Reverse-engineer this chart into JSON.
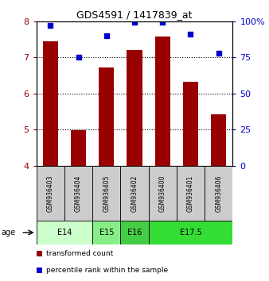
{
  "title": "GDS4591 / 1417839_at",
  "samples": [
    "GSM936403",
    "GSM936404",
    "GSM936405",
    "GSM936402",
    "GSM936400",
    "GSM936401",
    "GSM936406"
  ],
  "transformed_counts": [
    7.45,
    4.98,
    6.72,
    7.2,
    7.58,
    6.32,
    5.42
  ],
  "percentile_ranks": [
    97,
    75,
    90,
    99,
    99,
    91,
    78
  ],
  "ylim_left": [
    4,
    8
  ],
  "ylim_right": [
    0,
    100
  ],
  "bar_color": "#990000",
  "dot_color": "#0000cc",
  "age_groups": [
    {
      "label": "E14",
      "start": 0,
      "end": 2,
      "color": "#ccffcc"
    },
    {
      "label": "E15",
      "start": 2,
      "end": 3,
      "color": "#88ee88"
    },
    {
      "label": "E16",
      "start": 3,
      "end": 4,
      "color": "#44cc44"
    },
    {
      "label": "E17.5",
      "start": 4,
      "end": 7,
      "color": "#33dd33"
    }
  ],
  "sample_box_color": "#cccccc",
  "grid_yticks": [
    5,
    6,
    7
  ],
  "left_yticks": [
    4,
    5,
    6,
    7,
    8
  ],
  "right_yticks": [
    0,
    25,
    50,
    75,
    100
  ],
  "right_yticklabels": [
    "0",
    "25",
    "50",
    "75",
    "100%"
  ]
}
